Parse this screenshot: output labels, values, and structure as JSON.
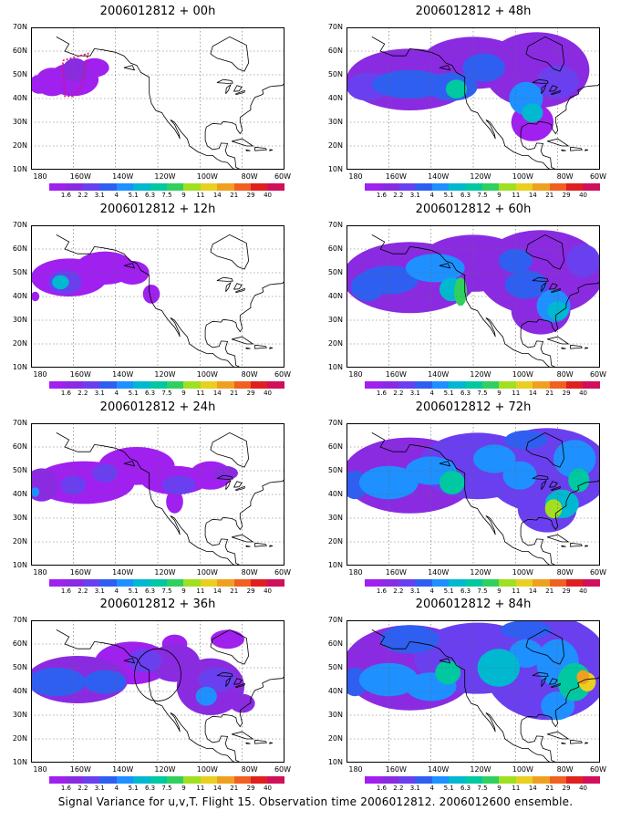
{
  "panels": [
    {
      "title": "2006012812 + 00h",
      "col": 0,
      "row": 0,
      "blobs": "p00"
    },
    {
      "title": "2006012812 + 12h",
      "col": 0,
      "row": 1,
      "blobs": "p12"
    },
    {
      "title": "2006012812 + 24h",
      "col": 0,
      "row": 2,
      "blobs": "p24"
    },
    {
      "title": "2006012812 + 36h",
      "col": 0,
      "row": 3,
      "blobs": "p36"
    },
    {
      "title": "2006012812 + 48h",
      "col": 1,
      "row": 0,
      "blobs": "p48"
    },
    {
      "title": "2006012812 + 60h",
      "col": 1,
      "row": 1,
      "blobs": "p60"
    },
    {
      "title": "2006012812 + 72h",
      "col": 1,
      "row": 2,
      "blobs": "p72"
    },
    {
      "title": "2006012812 + 84h",
      "col": 1,
      "row": 3,
      "blobs": "p84"
    }
  ],
  "lat_labels": [
    "70N",
    "60N",
    "50N",
    "40N",
    "30N",
    "20N",
    "10N"
  ],
  "lon_labels": [
    "180",
    "160W",
    "140W",
    "120W",
    "100W",
    "80W",
    "60W"
  ],
  "colorbar": {
    "labels": [
      "1.6",
      "2.2",
      "3.1",
      "4",
      "5.1",
      "6.3",
      "7.5",
      "9",
      "11",
      "14",
      "21",
      "29",
      "40"
    ],
    "colors": [
      "#a020f0",
      "#8a2be2",
      "#6a3ff0",
      "#2f5ff0",
      "#1e90ff",
      "#00b8d0",
      "#00c8a0",
      "#30d060",
      "#a0e020",
      "#e8d020",
      "#f0a020",
      "#f06020",
      "#e02020",
      "#d0105a"
    ]
  },
  "footer": "Signal Variance for u,v,T. Flight 15. Observation time 2006012812. 2006012600 ensemble."
}
